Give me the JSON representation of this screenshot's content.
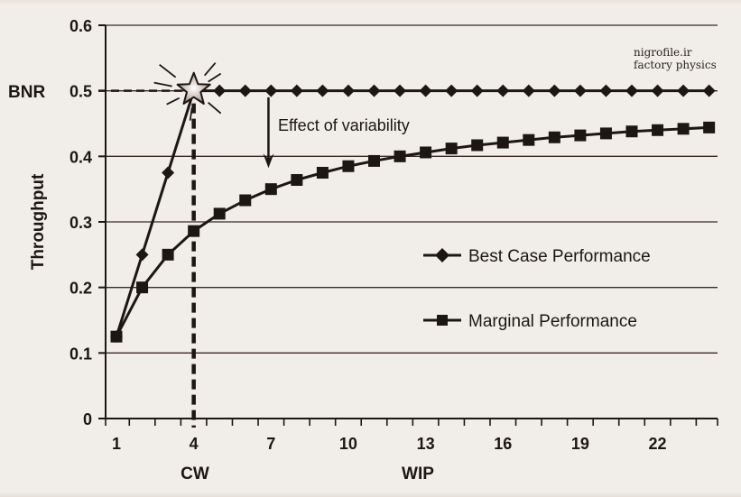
{
  "chart_data": {
    "type": "line",
    "title": "",
    "xlabel": "WIP",
    "ylabel": "Throughput",
    "xlim": [
      0.6,
      24.4
    ],
    "ylim": [
      0,
      0.6
    ],
    "grid": true,
    "x_ticks": [
      1,
      4,
      7,
      10,
      13,
      16,
      19,
      22
    ],
    "x_minor_ticks": [
      1,
      2,
      3,
      4,
      5,
      6,
      7,
      8,
      9,
      10,
      11,
      12,
      13,
      14,
      15,
      16,
      17,
      18,
      19,
      20,
      21,
      22,
      23,
      24
    ],
    "y_ticks": [
      0,
      0.1,
      0.2,
      0.3,
      0.4,
      0.5,
      0.6
    ],
    "y_tick_labels": [
      "0",
      "0.1",
      "0.2",
      "0.3",
      "0.4",
      "0.5",
      "0.6"
    ],
    "x": [
      1,
      2,
      3,
      4,
      5,
      6,
      7,
      8,
      9,
      10,
      11,
      12,
      13,
      14,
      15,
      16,
      17,
      18,
      19,
      20,
      21,
      22,
      23,
      24
    ],
    "series": [
      {
        "name": "Best Case Performance",
        "marker": "diamond",
        "values": [
          0.125,
          0.25,
          0.375,
          0.5,
          0.5,
          0.5,
          0.5,
          0.5,
          0.5,
          0.5,
          0.5,
          0.5,
          0.5,
          0.5,
          0.5,
          0.5,
          0.5,
          0.5,
          0.5,
          0.5,
          0.5,
          0.5,
          0.5,
          0.5
        ]
      },
      {
        "name": "Marginal Performance",
        "marker": "square",
        "values": [
          0.125,
          0.2,
          0.25,
          0.286,
          0.3125,
          0.333,
          0.35,
          0.364,
          0.375,
          0.385,
          0.393,
          0.4,
          0.406,
          0.412,
          0.417,
          0.421,
          0.425,
          0.429,
          0.432,
          0.435,
          0.438,
          0.44,
          0.442,
          0.444
        ]
      }
    ],
    "legend": {
      "position": "center-right",
      "entries": [
        "Best Case Performance",
        "Marginal Performance"
      ]
    },
    "annotations": {
      "bnr_label": "BNR",
      "bnr_value": 0.5,
      "cw_label": "CW",
      "cw_value": 4,
      "effect_label": "Effect of variability",
      "effect_arrow_x": 6.9,
      "effect_arrow_from": 0.49,
      "effect_arrow_to": 0.385
    },
    "colors": {
      "line": "#1c1614",
      "grid": "#3a2a22",
      "background": "#f1eee9",
      "star_fill": "#d8cfc6",
      "star_stroke": "#1c1614"
    }
  },
  "watermark": {
    "line1": "nigrofile.ir",
    "line2": "factory physics"
  }
}
